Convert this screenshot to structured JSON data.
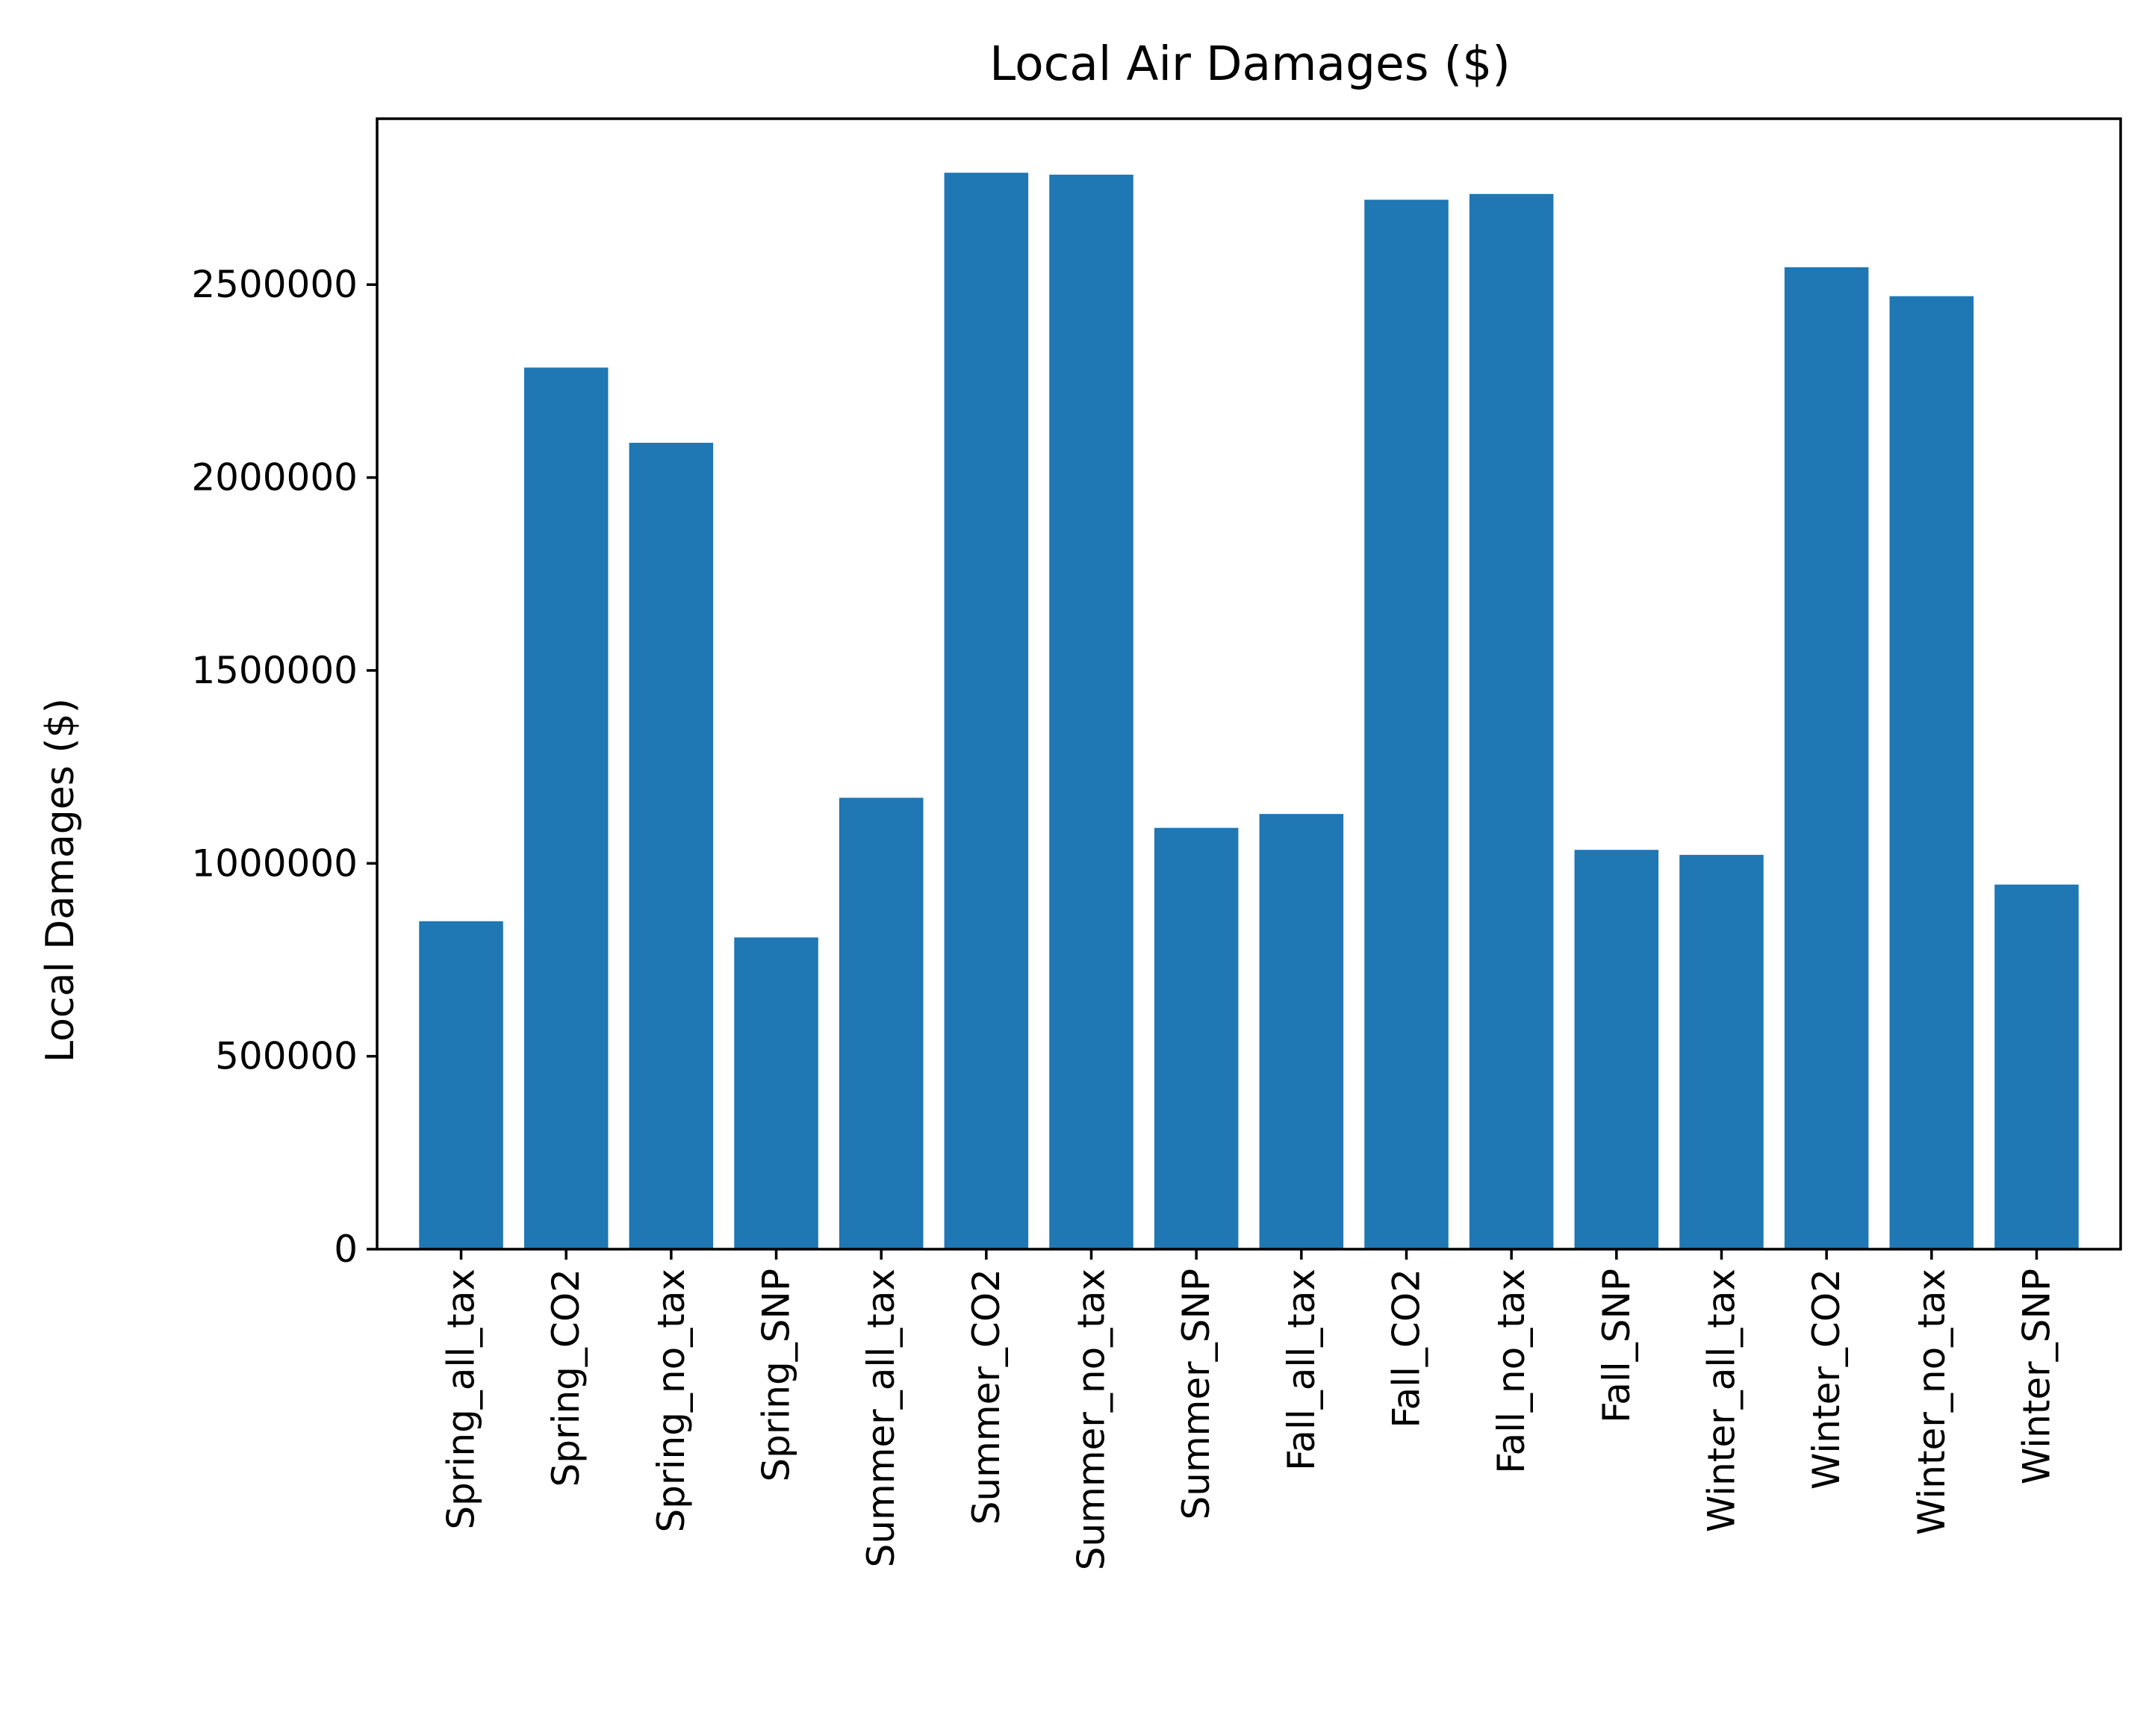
{
  "chart_data": {
    "type": "bar",
    "title": "Local Air Damages ($)",
    "xlabel": "",
    "ylabel": "Local Damages ($)",
    "categories": [
      "Spring_all_tax",
      "Spring_CO2",
      "Spring_no_tax",
      "Spring_SNP",
      "Summer_all_tax",
      "Summer_CO2",
      "Summer_no_tax",
      "Summer_SNP",
      "Fall_all_tax",
      "Fall_CO2",
      "Fall_no_tax",
      "Fall_SNP",
      "Winter_all_tax",
      "Winter_CO2",
      "Winter_no_tax",
      "Winter_SNP"
    ],
    "values": [
      850000,
      2285000,
      2090000,
      808000,
      1170000,
      2790000,
      2785000,
      1092000,
      1128000,
      2720000,
      2735000,
      1035000,
      1022000,
      2545000,
      2470000,
      945000
    ],
    "ylim": [
      0,
      2930000
    ],
    "yticks": [
      0,
      500000,
      1000000,
      1500000,
      2000000,
      2500000
    ],
    "ytick_labels": [
      "0",
      "500000",
      "1000000",
      "1500000",
      "2000000",
      "2500000"
    ],
    "bar_color": "#1f77b4",
    "grid": false,
    "legend": "none"
  }
}
